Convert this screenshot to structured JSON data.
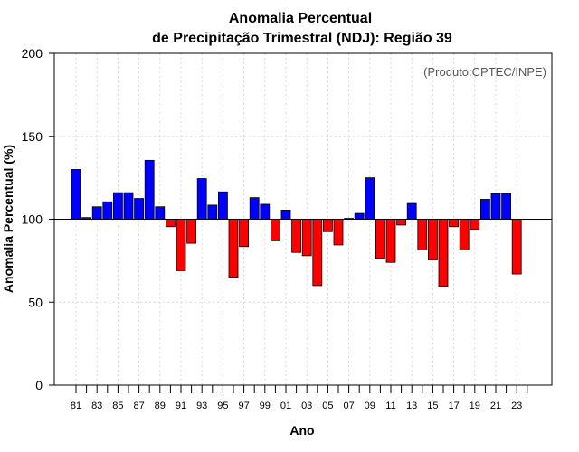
{
  "chart_data": {
    "type": "bar",
    "title_line1": "Anomalia Percentual",
    "title_line2": "de Precipitação Trimestral (NDJ): Região 39",
    "xlabel": "Ano",
    "ylabel": "Anomalia Percentual (%)",
    "credit": "(Produto:CPTEC/INPE)",
    "ylim": [
      0,
      200
    ],
    "yticks": [
      "0",
      "50",
      "100",
      "150",
      "200"
    ],
    "baseline": 100,
    "grid": true,
    "above_color": "#0000ff",
    "below_color": "#ff0000",
    "categories": [
      "81",
      "82",
      "83",
      "84",
      "85",
      "86",
      "87",
      "88",
      "89",
      "90",
      "91",
      "92",
      "93",
      "94",
      "95",
      "96",
      "97",
      "98",
      "99",
      "00",
      "01",
      "02",
      "03",
      "04",
      "05",
      "06",
      "07",
      "08",
      "09",
      "10",
      "11",
      "12",
      "13",
      "14",
      "15",
      "16",
      "17",
      "18",
      "19",
      "20",
      "21",
      "22",
      "23"
    ],
    "tick_labels": [
      "81",
      "83",
      "85",
      "87",
      "89",
      "91",
      "93",
      "95",
      "97",
      "99",
      "01",
      "03",
      "05",
      "07",
      "09",
      "11",
      "13",
      "15",
      "17",
      "19",
      "21",
      "23"
    ],
    "values": [
      130,
      101,
      107.5,
      110.5,
      116,
      116,
      112.5,
      135.5,
      107.5,
      95.5,
      69,
      85.5,
      124.5,
      108.5,
      116.5,
      65,
      83.5,
      113,
      109,
      87,
      105.5,
      80,
      78,
      60,
      92.5,
      84.5,
      100.5,
      103.5,
      125,
      76.5,
      74,
      96.5,
      109.5,
      81.5,
      75.5,
      59.5,
      95.5,
      81.5,
      94,
      112,
      115.5,
      115.5,
      67
    ]
  }
}
